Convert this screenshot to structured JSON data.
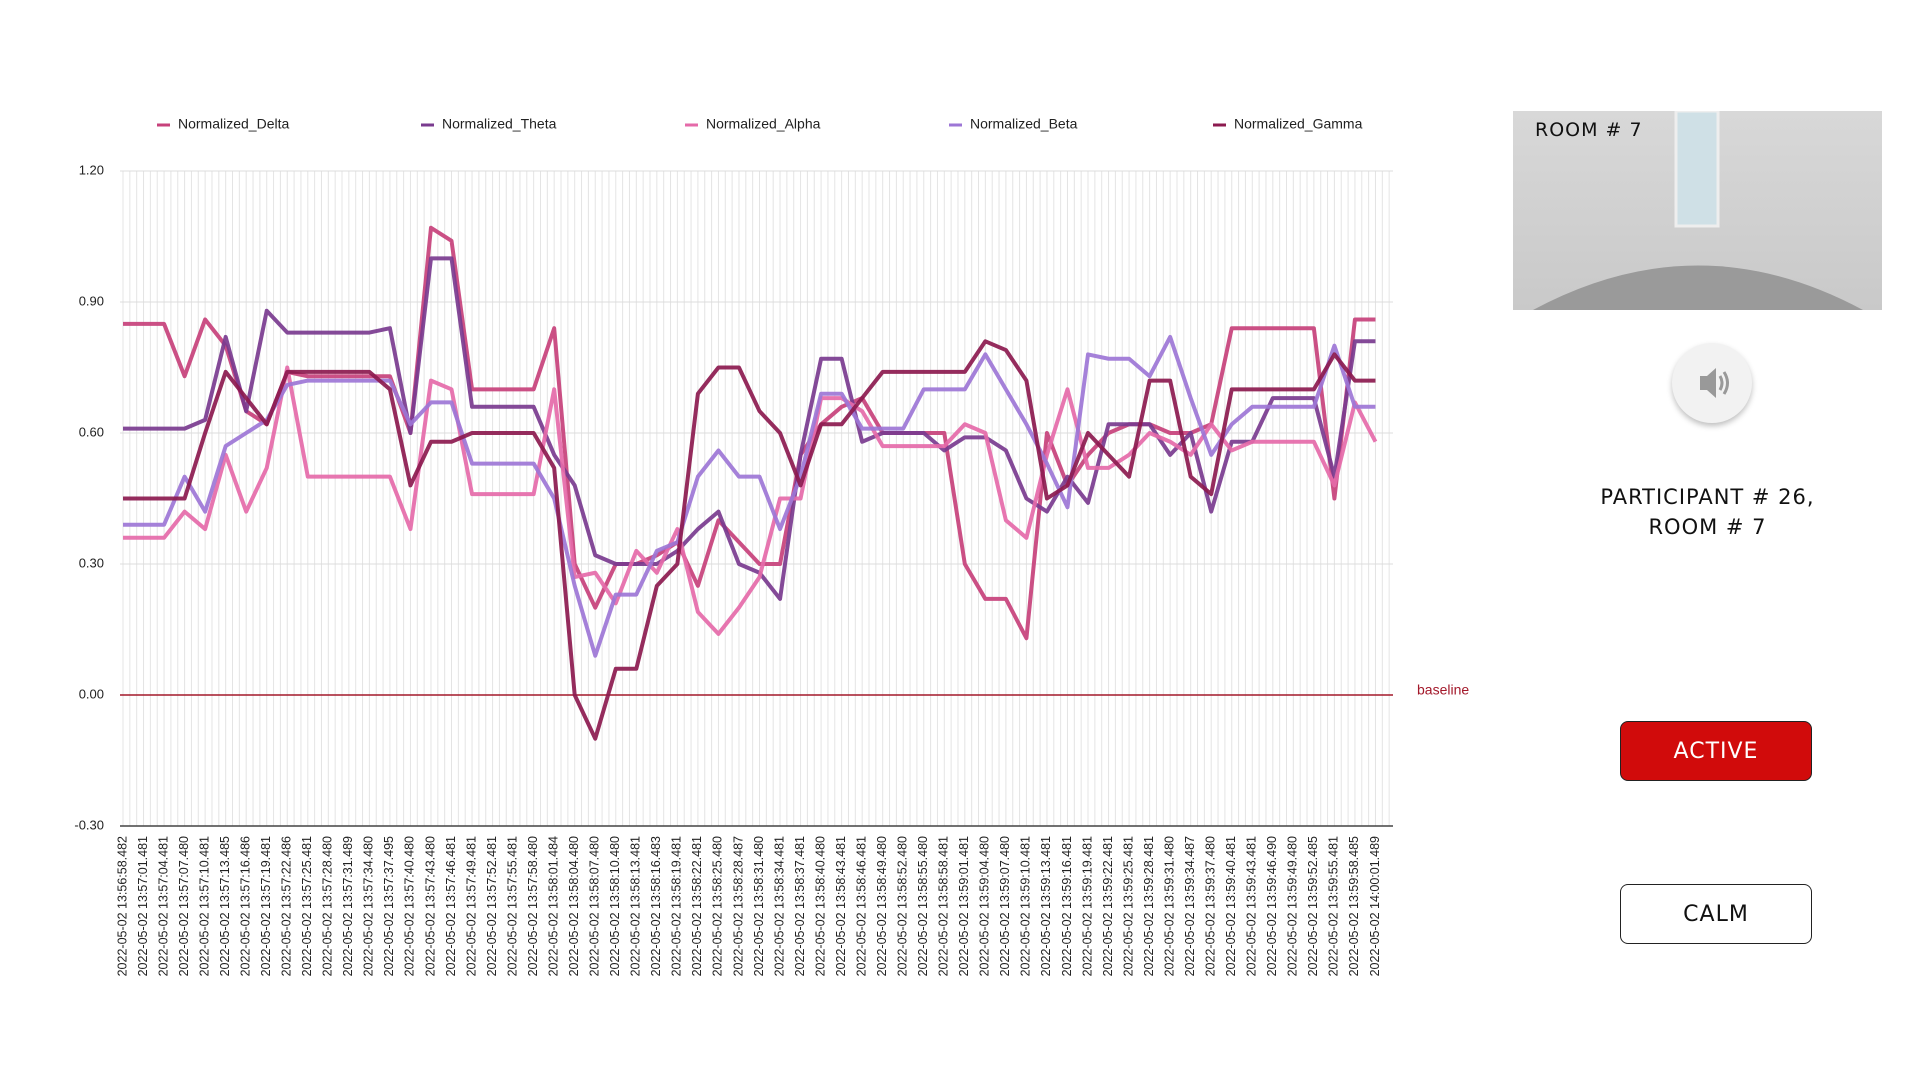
{
  "chart_data": {
    "type": "line",
    "categories": [
      "2022-05-02 13:56:58.482",
      "2022-05-02 13:57:01.481",
      "2022-05-02 13:57:04.481",
      "2022-05-02 13:57:07.480",
      "2022-05-02 13:57:10.481",
      "2022-05-02 13:57:13.485",
      "2022-05-02 13:57:16.486",
      "2022-05-02 13:57:19.481",
      "2022-05-02 13:57:22.486",
      "2022-05-02 13:57:25.481",
      "2022-05-02 13:57:28.480",
      "2022-05-02 13:57:31.489",
      "2022-05-02 13:57:34.480",
      "2022-05-02 13:57:37.495",
      "2022-05-02 13:57:40.480",
      "2022-05-02 13:57:43.480",
      "2022-05-02 13:57:46.481",
      "2022-05-02 13:57:49.481",
      "2022-05-02 13:57:52.481",
      "2022-05-02 13:57:55.481",
      "2022-05-02 13:57:58.480",
      "2022-05-02 13:58:01.484",
      "2022-05-02 13:58:04.480",
      "2022-05-02 13:58:07.480",
      "2022-05-02 13:58:10.480",
      "2022-05-02 13:58:13.481",
      "2022-05-02 13:58:16.483",
      "2022-05-02 13:58:19.481",
      "2022-05-02 13:58:22.481",
      "2022-05-02 13:58:25.480",
      "2022-05-02 13:58:28.487",
      "2022-05-02 13:58:31.480",
      "2022-05-02 13:58:34.481",
      "2022-05-02 13:58:37.481",
      "2022-05-02 13:58:40.480",
      "2022-05-02 13:58:43.481",
      "2022-05-02 13:58:46.481",
      "2022-05-02 13:58:49.480",
      "2022-05-02 13:58:52.480",
      "2022-05-02 13:58:55.480",
      "2022-05-02 13:58:58.481",
      "2022-05-02 13:59:01.481",
      "2022-05-02 13:59:04.480",
      "2022-05-02 13:59:07.480",
      "2022-05-02 13:59:10.481",
      "2022-05-02 13:59:13.481",
      "2022-05-02 13:59:16.481",
      "2022-05-02 13:59:19.481",
      "2022-05-02 13:59:22.481",
      "2022-05-02 13:59:25.481",
      "2022-05-02 13:59:28.481",
      "2022-05-02 13:59:31.480",
      "2022-05-02 13:59:34.487",
      "2022-05-02 13:59:37.480",
      "2022-05-02 13:59:40.481",
      "2022-05-02 13:59:43.481",
      "2022-05-02 13:59:46.490",
      "2022-05-02 13:59:49.480",
      "2022-05-02 13:59:52.485",
      "2022-05-02 13:59:55.481",
      "2022-05-02 13:59:58.485",
      "2022-05-02 14:00:01.489"
    ],
    "series": [
      {
        "name": "Normalized_Delta",
        "color": "#c7417b",
        "values": [
          0.85,
          0.85,
          0.85,
          0.73,
          0.86,
          0.8,
          0.65,
          0.62,
          0.74,
          0.73,
          0.73,
          0.73,
          0.73,
          0.73,
          0.6,
          1.07,
          1.04,
          0.7,
          0.7,
          0.7,
          0.7,
          0.84,
          0.3,
          0.2,
          0.3,
          0.3,
          0.32,
          0.35,
          0.25,
          0.4,
          0.35,
          0.3,
          0.3,
          0.55,
          0.62,
          0.66,
          0.68,
          0.6,
          0.6,
          0.6,
          0.6,
          0.3,
          0.22,
          0.22,
          0.13,
          0.6,
          0.48,
          0.55,
          0.6,
          0.62,
          0.62,
          0.6,
          0.6,
          0.62,
          0.84,
          0.84,
          0.84,
          0.84,
          0.84,
          0.45,
          0.86,
          0.86
        ]
      },
      {
        "name": "Normalized_Theta",
        "color": "#7a3b8f",
        "values": [
          0.61,
          0.61,
          0.61,
          0.61,
          0.63,
          0.82,
          0.65,
          0.88,
          0.83,
          0.83,
          0.83,
          0.83,
          0.83,
          0.84,
          0.6,
          1.0,
          1.0,
          0.66,
          0.66,
          0.66,
          0.66,
          0.55,
          0.48,
          0.32,
          0.3,
          0.3,
          0.3,
          0.33,
          0.38,
          0.42,
          0.3,
          0.28,
          0.22,
          0.55,
          0.77,
          0.77,
          0.58,
          0.6,
          0.6,
          0.6,
          0.56,
          0.59,
          0.59,
          0.56,
          0.45,
          0.42,
          0.5,
          0.44,
          0.62,
          0.62,
          0.62,
          0.55,
          0.6,
          0.42,
          0.58,
          0.58,
          0.68,
          0.68,
          0.68,
          0.5,
          0.81,
          0.81
        ]
      },
      {
        "name": "Normalized_Alpha",
        "color": "#e56aa9",
        "values": [
          0.36,
          0.36,
          0.36,
          0.42,
          0.38,
          0.55,
          0.42,
          0.52,
          0.75,
          0.5,
          0.5,
          0.5,
          0.5,
          0.5,
          0.38,
          0.72,
          0.7,
          0.46,
          0.46,
          0.46,
          0.46,
          0.7,
          0.27,
          0.28,
          0.21,
          0.33,
          0.28,
          0.38,
          0.19,
          0.14,
          0.2,
          0.27,
          0.45,
          0.45,
          0.68,
          0.68,
          0.65,
          0.57,
          0.57,
          0.57,
          0.57,
          0.62,
          0.6,
          0.4,
          0.36,
          0.55,
          0.7,
          0.52,
          0.52,
          0.55,
          0.6,
          0.58,
          0.55,
          0.62,
          0.56,
          0.58,
          0.58,
          0.58,
          0.58,
          0.48,
          0.67,
          0.58
        ]
      },
      {
        "name": "Normalized_Beta",
        "color": "#9d76d6",
        "values": [
          0.39,
          0.39,
          0.39,
          0.5,
          0.42,
          0.57,
          0.6,
          0.63,
          0.71,
          0.72,
          0.72,
          0.72,
          0.72,
          0.72,
          0.62,
          0.67,
          0.67,
          0.53,
          0.53,
          0.53,
          0.53,
          0.45,
          0.25,
          0.09,
          0.23,
          0.23,
          0.33,
          0.35,
          0.5,
          0.56,
          0.5,
          0.5,
          0.38,
          0.5,
          0.69,
          0.69,
          0.61,
          0.61,
          0.61,
          0.7,
          0.7,
          0.7,
          0.78,
          0.7,
          0.62,
          0.53,
          0.43,
          0.78,
          0.77,
          0.77,
          0.73,
          0.82,
          0.68,
          0.55,
          0.62,
          0.66,
          0.66,
          0.66,
          0.66,
          0.8,
          0.66,
          0.66
        ]
      },
      {
        "name": "Normalized_Gamma",
        "color": "#8c1a4f",
        "values": [
          0.45,
          0.45,
          0.45,
          0.45,
          0.6,
          0.74,
          0.68,
          0.62,
          0.74,
          0.74,
          0.74,
          0.74,
          0.74,
          0.7,
          0.48,
          0.58,
          0.58,
          0.6,
          0.6,
          0.6,
          0.6,
          0.52,
          0.0,
          -0.1,
          0.06,
          0.06,
          0.25,
          0.3,
          0.69,
          0.75,
          0.75,
          0.65,
          0.6,
          0.48,
          0.62,
          0.62,
          0.68,
          0.74,
          0.74,
          0.74,
          0.74,
          0.74,
          0.81,
          0.79,
          0.72,
          0.45,
          0.48,
          0.6,
          0.55,
          0.5,
          0.72,
          0.72,
          0.5,
          0.46,
          0.7,
          0.7,
          0.7,
          0.7,
          0.7,
          0.78,
          0.72,
          0.72
        ]
      }
    ],
    "ylim": [
      -0.3,
      1.2
    ],
    "yticks": [
      {
        "value": -0.3,
        "label": "-0.30"
      },
      {
        "value": 0,
        "label": "0.00"
      },
      {
        "value": 0.3,
        "label": "0.30"
      },
      {
        "value": 0.6,
        "label": "0.60"
      },
      {
        "value": 0.9,
        "label": "0.90"
      },
      {
        "value": 1.2,
        "label": "1.20"
      }
    ],
    "grid": true,
    "legend": "top",
    "reference_line": {
      "value": 0,
      "label": "baseline",
      "color": "#a3182a"
    }
  },
  "video": {
    "label": "ROOM # 7"
  },
  "participant": {
    "lines": [
      "PARTICIPANT # 26,",
      "ROOM # 7"
    ]
  },
  "buttons": [
    {
      "label": "ACTIVE"
    },
    {
      "label": "CALM"
    }
  ]
}
